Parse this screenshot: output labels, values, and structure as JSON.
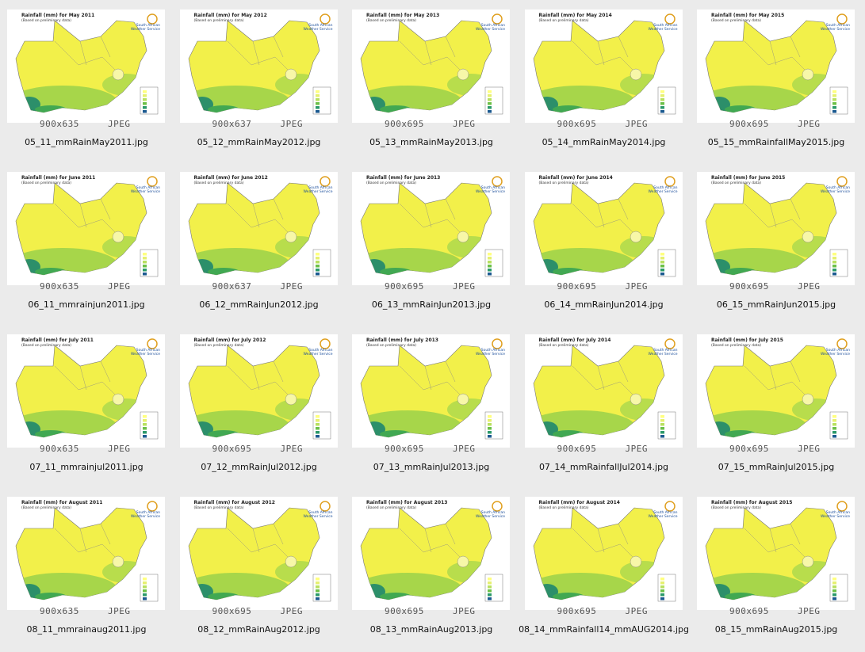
{
  "logo": "South African Weather Service",
  "subtitle": "(Based on preliminary data)",
  "items": [
    {
      "title": "Rainfall (mm) for May 2011",
      "dims": "900x635",
      "format": "JPEG",
      "file": "05_11_mmRainMay2011.jpg"
    },
    {
      "title": "Rainfall (mm) for May 2012",
      "dims": "900x637",
      "format": "JPEG",
      "file": "05_12_mmRainMay2012.jpg"
    },
    {
      "title": "Rainfall (mm) for May 2013",
      "dims": "900x695",
      "format": "JPEG",
      "file": "05_13_mmRainMay2013.jpg"
    },
    {
      "title": "Rainfall (mm) for May 2014",
      "dims": "900x695",
      "format": "JPEG",
      "file": "05_14_mmRainMay2014.jpg"
    },
    {
      "title": "Rainfall (mm) for May 2015",
      "dims": "900x695",
      "format": "JPEG",
      "file": "05_15_mmRainfallMay2015.jpg"
    },
    {
      "title": "Rainfall (mm) for June 2011",
      "dims": "900x635",
      "format": "JPEG",
      "file": "06_11_mmrainjun2011.jpg"
    },
    {
      "title": "Rainfall (mm) for June 2012",
      "dims": "900x637",
      "format": "JPEG",
      "file": "06_12_mmRainJun2012.jpg"
    },
    {
      "title": "Rainfall (mm) for June 2013",
      "dims": "900x695",
      "format": "JPEG",
      "file": "06_13_mmRainJun2013.jpg"
    },
    {
      "title": "Rainfall (mm) for June 2014",
      "dims": "900x695",
      "format": "JPEG",
      "file": "06_14_mmRainJun2014.jpg"
    },
    {
      "title": "Rainfall (mm) for June 2015",
      "dims": "900x695",
      "format": "JPEG",
      "file": "06_15_mmRainJun2015.jpg"
    },
    {
      "title": "Rainfall (mm) for July 2011",
      "dims": "900x635",
      "format": "JPEG",
      "file": "07_11_mmrainjul2011.jpg"
    },
    {
      "title": "Rainfall (mm) for July 2012",
      "dims": "900x695",
      "format": "JPEG",
      "file": "07_12_mmRainJul2012.jpg"
    },
    {
      "title": "Rainfall (mm) for July 2013",
      "dims": "900x695",
      "format": "JPEG",
      "file": "07_13_mmRainJul2013.jpg"
    },
    {
      "title": "Rainfall (mm) for July 2014",
      "dims": "900x695",
      "format": "JPEG",
      "file": "07_14_mmRainfallJul2014.jpg"
    },
    {
      "title": "Rainfall (mm) for July 2015",
      "dims": "900x695",
      "format": "JPEG",
      "file": "07_15_mmRainJul2015.jpg"
    },
    {
      "title": "Rainfall (mm) for August 2011",
      "dims": "900x635",
      "format": "JPEG",
      "file": "08_11_mmrainaug2011.jpg"
    },
    {
      "title": "Rainfall (mm) for August 2012",
      "dims": "900x695",
      "format": "JPEG",
      "file": "08_12_mmRainAug2012.jpg"
    },
    {
      "title": "Rainfall (mm) for August 2013",
      "dims": "900x695",
      "format": "JPEG",
      "file": "08_13_mmRainAug2013.jpg"
    },
    {
      "title": "Rainfall (mm) for August 2014",
      "dims": "900x695",
      "format": "JPEG",
      "file": "08_14_mmRainfall14_mmAUG2014.jpg"
    },
    {
      "title": "Rainfall (mm) for August 2015",
      "dims": "900x695",
      "format": "JPEG",
      "file": "08_15_mmRainAug2015.jpg"
    }
  ]
}
